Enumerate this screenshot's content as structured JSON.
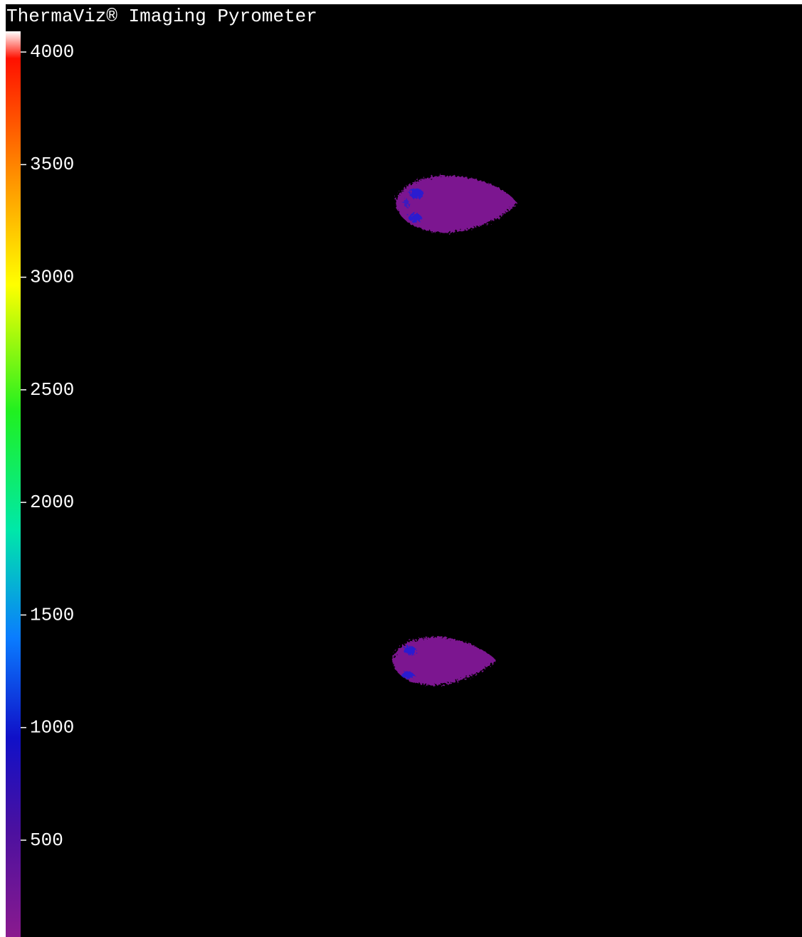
{
  "title": "ThermaViz® Imaging Pyrometer",
  "colorbar": {
    "lim": [
      70,
      4092
    ],
    "ticks": [
      4000,
      3500,
      3000,
      2500,
      2000,
      1500,
      1000,
      500
    ]
  }
}
